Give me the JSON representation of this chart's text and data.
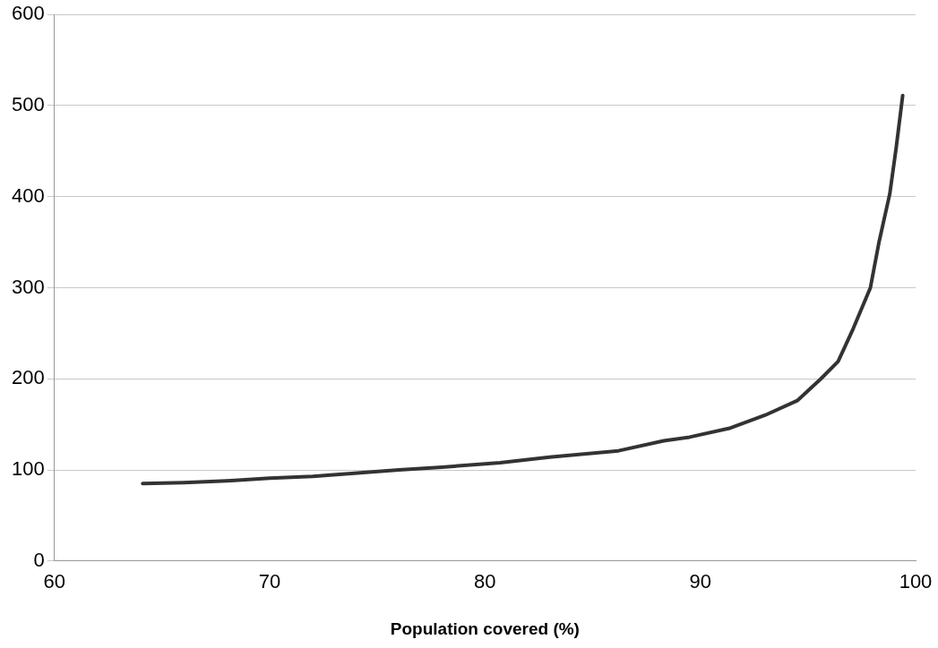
{
  "chart_data": {
    "type": "line",
    "xlabel": "Population covered (%)",
    "x": [
      64.1,
      66,
      68,
      70,
      72,
      73.8,
      76,
      78,
      80.7,
      83,
      86.2,
      88.3,
      89.5,
      91.4,
      93,
      94.5,
      95.6,
      96.4,
      97.1,
      97.9,
      98.3,
      98.8,
      99.1,
      99.4
    ],
    "series": [
      {
        "color": "#333333",
        "values": [
          85,
          86,
          88,
          91,
          93,
          96,
          100,
          103,
          108,
          114,
          121,
          132,
          136,
          146,
          160,
          176,
          200,
          219,
          255,
          300,
          350,
          403,
          454,
          511
        ]
      }
    ],
    "xlim": [
      60,
      100
    ],
    "xticks": [
      60,
      70,
      80,
      90,
      100
    ],
    "ylim": [
      0,
      600
    ],
    "yticks": [
      0,
      100,
      200,
      300,
      400,
      500,
      600
    ],
    "grid": "y",
    "marker": "none",
    "line_style": "solid"
  }
}
